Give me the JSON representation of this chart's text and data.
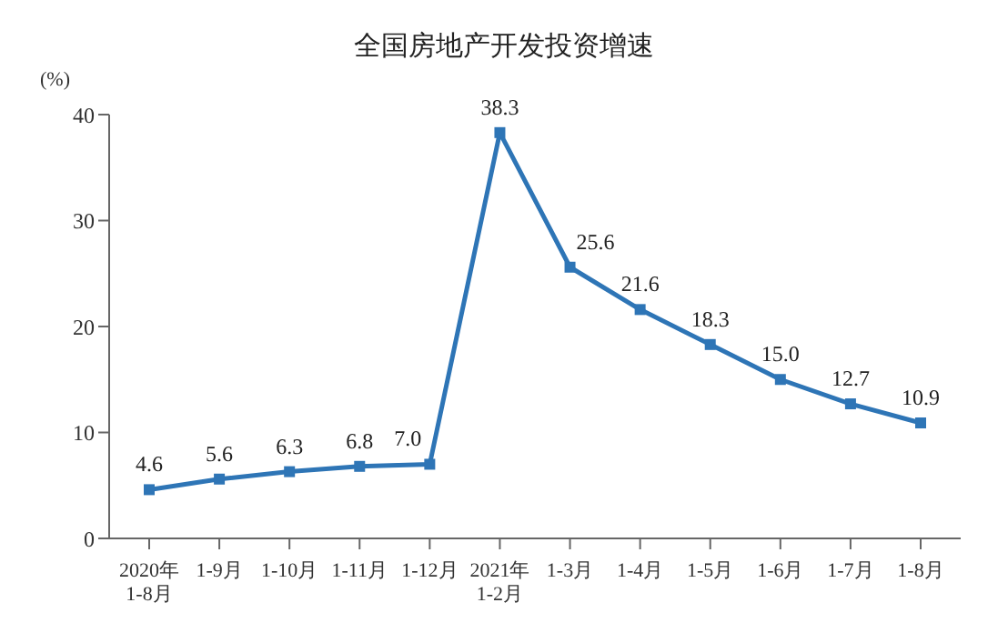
{
  "chart_data": {
    "type": "line",
    "title": "全国房地产开发投资增速",
    "ylabel": "(%)",
    "categories": [
      "2020年\n1-8月",
      "1-9月",
      "1-10月",
      "1-11月",
      "1-12月",
      "2021年\n1-2月",
      "1-3月",
      "1-4月",
      "1-5月",
      "1-6月",
      "1-7月",
      "1-8月"
    ],
    "series": [
      {
        "color": "#2e75b6",
        "values": [
          4.6,
          5.6,
          6.3,
          6.8,
          7.0,
          38.3,
          25.6,
          21.6,
          18.3,
          15.0,
          12.7,
          10.9
        ],
        "value_labels": [
          "4.6",
          "5.6",
          "6.3",
          "6.8",
          "7.0",
          "38.3",
          "25.6",
          "21.6",
          "18.3",
          "15.0",
          "12.7",
          "10.9"
        ]
      }
    ],
    "ylim": [
      0,
      40
    ],
    "yticks": [
      0,
      10,
      20,
      30,
      40
    ],
    "grid": false,
    "legend": false,
    "marker": "square",
    "line_style": "solid"
  }
}
